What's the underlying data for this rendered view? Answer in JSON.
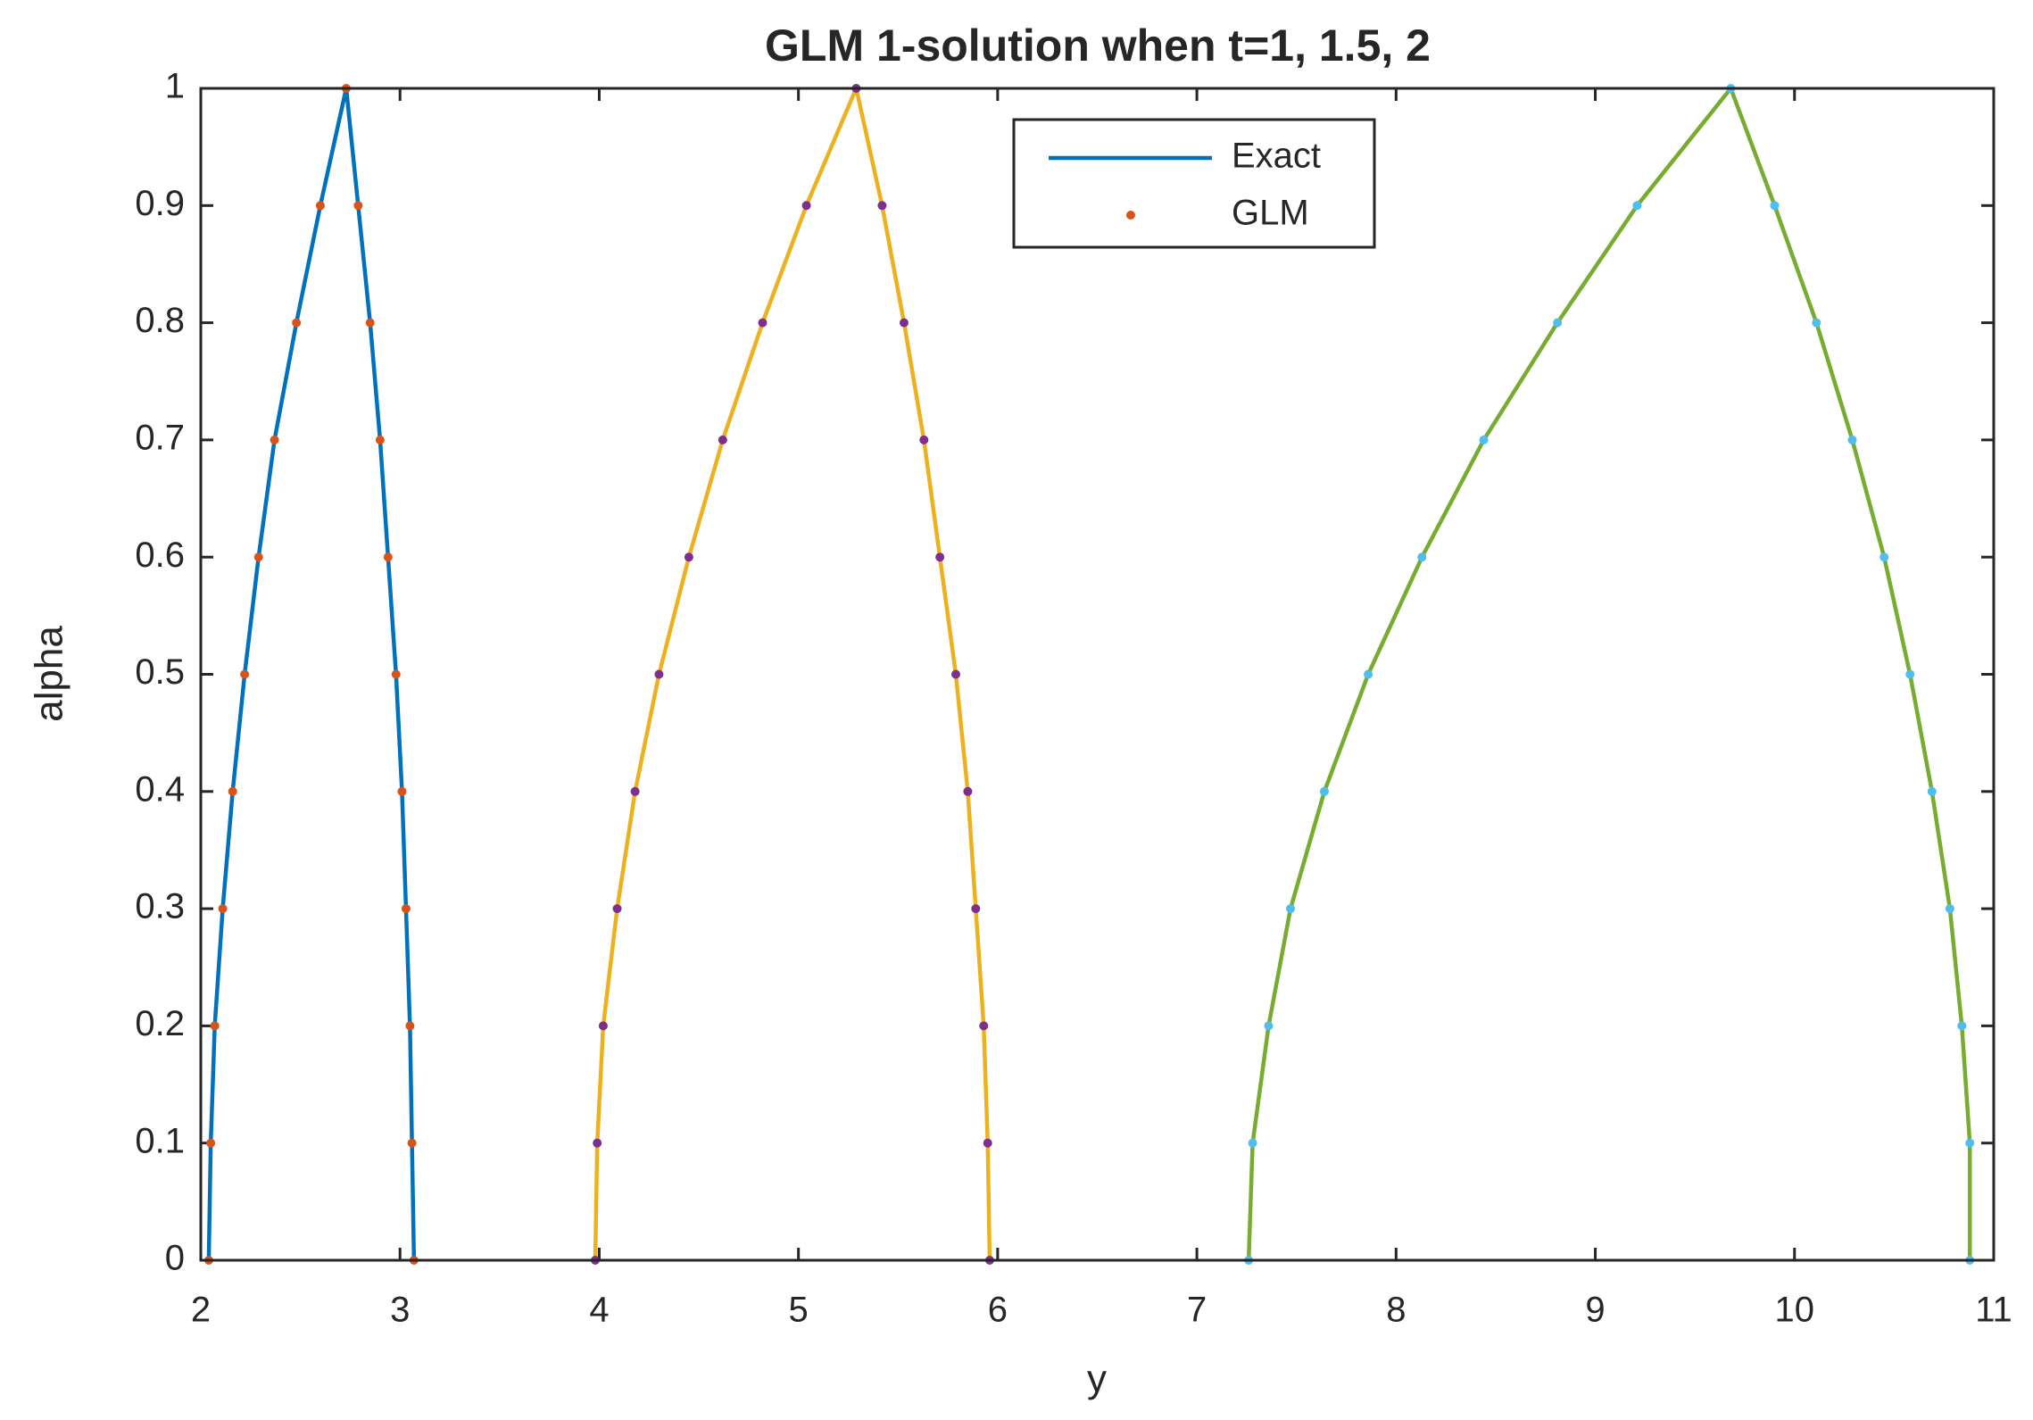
{
  "chart_data": {
    "type": "line",
    "title": "GLM 1-solution when t=1, 1.5, 2",
    "x_label": "y",
    "y_label": "alpha",
    "xlim": [
      2,
      11
    ],
    "xticks": [
      2,
      3,
      4,
      5,
      6,
      7,
      8,
      9,
      10,
      11
    ],
    "ylim": [
      0,
      1
    ],
    "yticks": [
      0,
      0.1,
      0.2,
      0.3,
      0.4,
      0.5,
      0.6,
      0.7,
      0.8,
      0.9,
      1
    ],
    "grid": false,
    "legend_position": "upper center",
    "legend": [
      {
        "label": "Exact",
        "kind": "line",
        "color": "#0072bd"
      },
      {
        "label": "GLM",
        "kind": "dot",
        "color": "#d95319"
      }
    ],
    "series": [
      {
        "color": "#0072bd",
        "marker_color": "#d95319",
        "x": [
          2.04,
          2.05,
          2.07,
          2.11,
          2.16,
          2.22,
          2.29,
          2.37,
          2.48,
          2.6,
          2.73,
          2.79,
          2.85,
          2.9,
          2.94,
          2.98,
          3.01,
          3.03,
          3.05,
          3.06,
          3.07
        ],
        "y": [
          0,
          0.1,
          0.2,
          0.3,
          0.4,
          0.5,
          0.6,
          0.7,
          0.8,
          0.9,
          1,
          0.9,
          0.8,
          0.7,
          0.6,
          0.5,
          0.4,
          0.3,
          0.2,
          0.1,
          0
        ]
      },
      {
        "color": "#edb120",
        "marker_color": "#7e2f8e",
        "x": [
          3.98,
          3.99,
          4.02,
          4.09,
          4.18,
          4.3,
          4.45,
          4.62,
          4.82,
          5.04,
          5.29,
          5.42,
          5.53,
          5.63,
          5.71,
          5.79,
          5.85,
          5.89,
          5.93,
          5.95,
          5.96
        ],
        "y": [
          0,
          0.1,
          0.2,
          0.3,
          0.4,
          0.5,
          0.6,
          0.7,
          0.8,
          0.9,
          1,
          0.9,
          0.8,
          0.7,
          0.6,
          0.5,
          0.4,
          0.3,
          0.2,
          0.1,
          0
        ]
      },
      {
        "color": "#77ac30",
        "marker_color": "#4dbeee",
        "x": [
          7.26,
          7.28,
          7.36,
          7.47,
          7.64,
          7.86,
          8.13,
          8.44,
          8.81,
          9.21,
          9.68,
          9.9,
          10.11,
          10.29,
          10.45,
          10.58,
          10.69,
          10.78,
          10.84,
          10.88,
          10.88
        ],
        "y": [
          0,
          0.1,
          0.2,
          0.3,
          0.4,
          0.5,
          0.6,
          0.7,
          0.8,
          0.9,
          1,
          0.9,
          0.8,
          0.7,
          0.6,
          0.5,
          0.4,
          0.3,
          0.2,
          0.1,
          0
        ]
      }
    ]
  }
}
